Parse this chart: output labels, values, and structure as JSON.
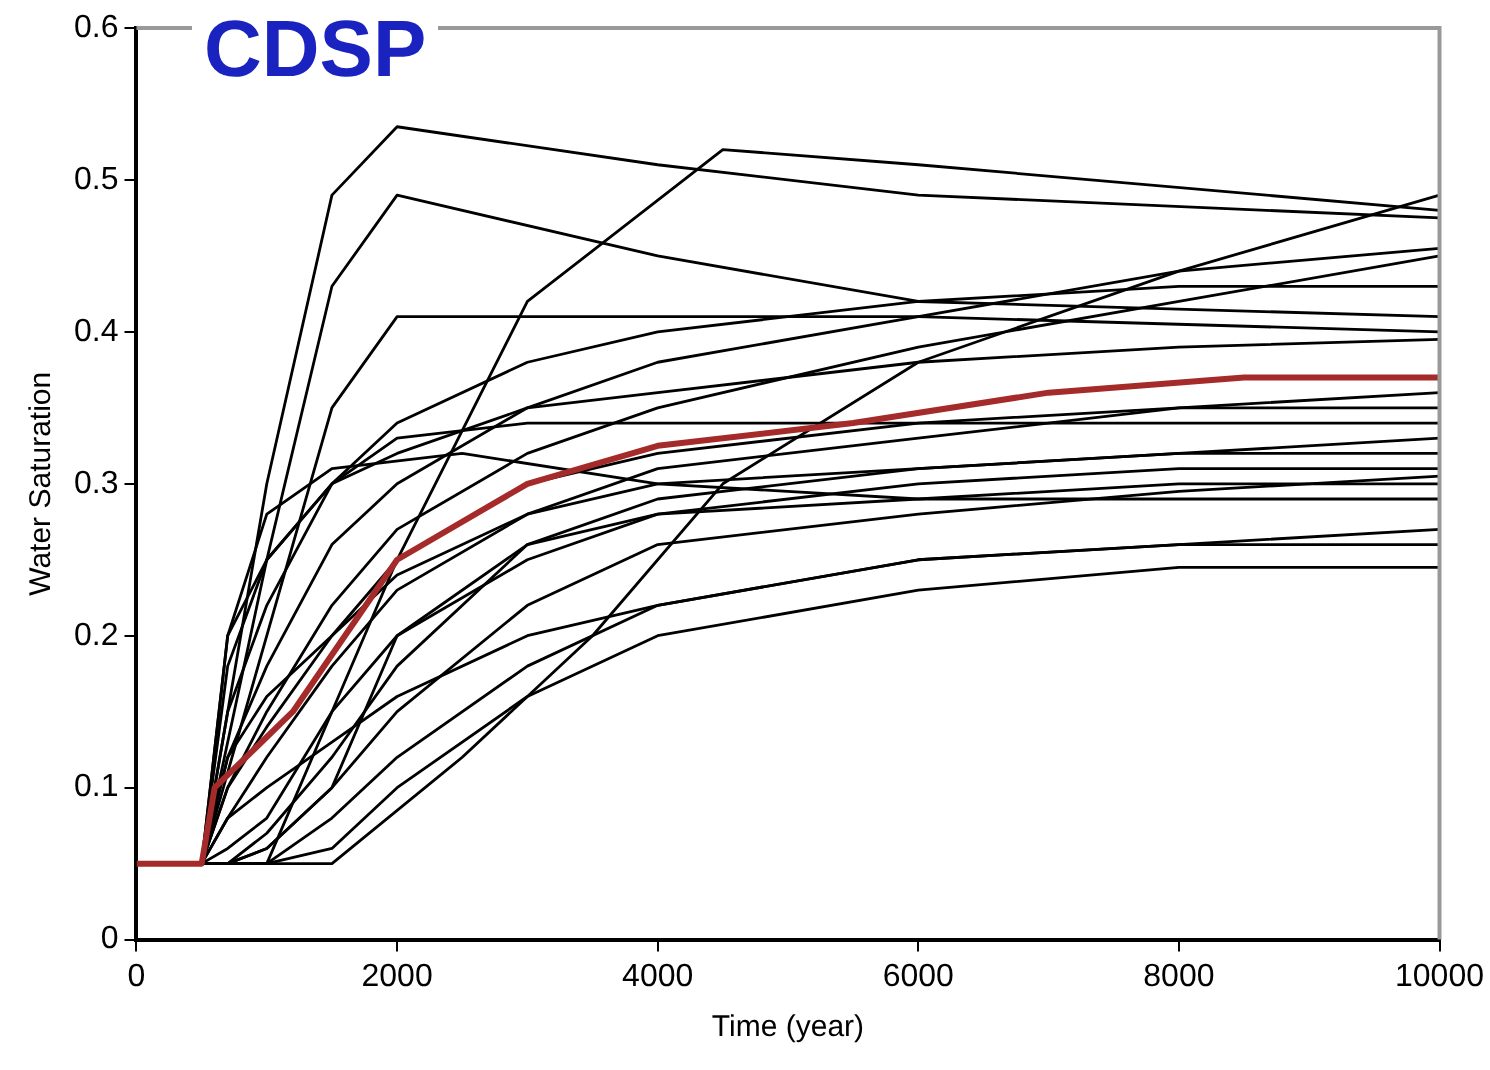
{
  "chart_data": {
    "type": "line",
    "title": "CDSP",
    "xlabel": "Time (year)",
    "ylabel": "Water Saturation",
    "xlim": [
      0,
      10000
    ],
    "xticks": [
      0,
      2000,
      4000,
      6000,
      8000,
      10000
    ],
    "ylim": [
      0,
      0.6
    ],
    "yticks": [
      0,
      0.1,
      0.2,
      0.3,
      0.4,
      0.5,
      0.6
    ],
    "grid": false,
    "legend": false,
    "marker": "none",
    "line_style": "solid",
    "x": [
      0,
      500,
      700,
      1000,
      1500,
      2000,
      3000,
      4000,
      6000,
      8000,
      10000
    ],
    "series": [
      {
        "color": "#000000",
        "x": [
          0,
          500,
          1000,
          1500,
          2000,
          4000,
          6000,
          10000
        ],
        "values": [
          0.05,
          0.05,
          0.3,
          0.49,
          0.535,
          0.51,
          0.49,
          0.475
        ]
      },
      {
        "color": "#000000",
        "x": [
          0,
          500,
          1000,
          1500,
          2000,
          4000,
          6000,
          10000
        ],
        "values": [
          0.05,
          0.05,
          0.25,
          0.43,
          0.49,
          0.45,
          0.42,
          0.41
        ]
      },
      {
        "color": "#000000",
        "x": [
          0,
          1000,
          1500,
          2000,
          3000,
          4500,
          6000,
          10000
        ],
        "values": [
          0.05,
          0.05,
          0.15,
          0.25,
          0.42,
          0.52,
          0.51,
          0.48
        ]
      },
      {
        "color": "#000000",
        "x": [
          0,
          500,
          700,
          1000,
          1500,
          2500,
          4000,
          6000,
          10000
        ],
        "values": [
          0.05,
          0.05,
          0.2,
          0.28,
          0.31,
          0.32,
          0.3,
          0.29,
          0.29
        ]
      },
      {
        "color": "#000000",
        "x": [
          0,
          500,
          1000,
          1500,
          2000,
          4000,
          6000,
          10000
        ],
        "values": [
          0.05,
          0.05,
          0.2,
          0.35,
          0.41,
          0.41,
          0.41,
          0.4
        ]
      },
      {
        "color": "#000000",
        "x": [
          0,
          1500,
          2500,
          3500,
          4500,
          6000,
          8000,
          10000
        ],
        "values": [
          0.05,
          0.05,
          0.12,
          0.2,
          0.3,
          0.38,
          0.44,
          0.49
        ]
      },
      {
        "color": "#000000",
        "values": [
          0.05,
          0.05,
          0.15,
          0.22,
          0.3,
          0.34,
          0.38,
          0.4,
          0.42,
          0.43,
          0.43
        ]
      },
      {
        "color": "#000000",
        "values": [
          0.05,
          0.05,
          0.12,
          0.18,
          0.26,
          0.3,
          0.35,
          0.38,
          0.41,
          0.44,
          0.455
        ]
      },
      {
        "color": "#000000",
        "values": [
          0.05,
          0.05,
          0.1,
          0.15,
          0.22,
          0.27,
          0.32,
          0.35,
          0.39,
          0.42,
          0.45
        ]
      },
      {
        "color": "#000000",
        "values": [
          0.05,
          0.05,
          0.1,
          0.14,
          0.2,
          0.25,
          0.3,
          0.32,
          0.34,
          0.35,
          0.35
        ]
      },
      {
        "color": "#000000",
        "values": [
          0.05,
          0.05,
          0.08,
          0.12,
          0.18,
          0.23,
          0.28,
          0.3,
          0.31,
          0.32,
          0.32
        ]
      },
      {
        "color": "#000000",
        "values": [
          0.05,
          0.05,
          0.06,
          0.08,
          0.15,
          0.2,
          0.25,
          0.28,
          0.3,
          0.31,
          0.31
        ]
      },
      {
        "color": "#000000",
        "values": [
          0.05,
          0.05,
          0.05,
          0.06,
          0.1,
          0.15,
          0.22,
          0.26,
          0.28,
          0.295,
          0.305
        ]
      },
      {
        "color": "#000000",
        "values": [
          0.05,
          0.05,
          0.05,
          0.05,
          0.08,
          0.12,
          0.18,
          0.22,
          0.25,
          0.26,
          0.26
        ]
      },
      {
        "color": "#000000",
        "values": [
          0.05,
          0.05,
          0.05,
          0.05,
          0.06,
          0.1,
          0.16,
          0.2,
          0.23,
          0.245,
          0.245
        ]
      },
      {
        "color": "#000000",
        "values": [
          0.05,
          0.05,
          0.18,
          0.25,
          0.3,
          0.32,
          0.35,
          0.36,
          0.38,
          0.39,
          0.395
        ]
      },
      {
        "color": "#000000",
        "values": [
          0.05,
          0.05,
          0.2,
          0.25,
          0.3,
          0.33,
          0.34,
          0.34,
          0.34,
          0.34,
          0.34
        ]
      },
      {
        "color": "#000000",
        "values": [
          0.05,
          0.05,
          0.12,
          0.16,
          0.2,
          0.24,
          0.28,
          0.31,
          0.33,
          0.35,
          0.36
        ]
      },
      {
        "color": "#000000",
        "values": [
          0.05,
          0.05,
          0.05,
          0.07,
          0.12,
          0.18,
          0.26,
          0.29,
          0.31,
          0.32,
          0.33
        ]
      },
      {
        "color": "#000000",
        "values": [
          0.05,
          0.05,
          0.05,
          0.06,
          0.1,
          0.2,
          0.26,
          0.28,
          0.29,
          0.3,
          0.3
        ]
      },
      {
        "color": "#000000",
        "values": [
          0.05,
          0.05,
          0.08,
          0.1,
          0.13,
          0.16,
          0.2,
          0.22,
          0.25,
          0.26,
          0.27
        ]
      },
      {
        "color": "#a52a2a",
        "x": [
          0,
          500,
          600,
          1200,
          2000,
          3000,
          4000,
          5500,
          7000,
          8500,
          10000
        ],
        "values": [
          0.05,
          0.05,
          0.1,
          0.15,
          0.25,
          0.3,
          0.325,
          0.34,
          0.36,
          0.37,
          0.37
        ]
      }
    ]
  }
}
